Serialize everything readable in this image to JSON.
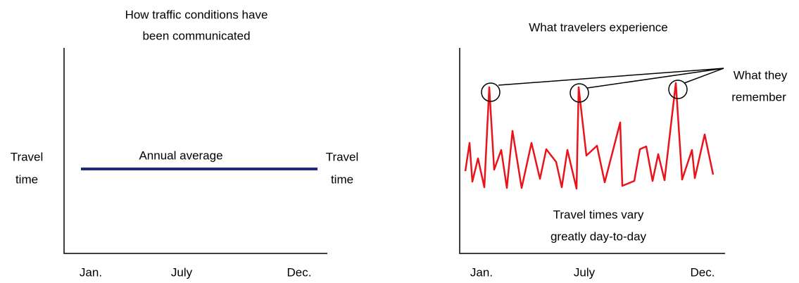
{
  "left_panel": {
    "title_lines": [
      "How traffic conditions have",
      "been communicated"
    ],
    "y_label_left": [
      "Travel",
      "time"
    ],
    "y_label_right": [
      "Travel",
      "time"
    ],
    "line_label": "Annual average",
    "x_labels": [
      "Jan.",
      "July",
      "Dec."
    ]
  },
  "right_panel": {
    "title": "What travelers experience",
    "callout": [
      "What they",
      "remember"
    ],
    "annotation": [
      "Travel times vary",
      "greatly day-to-day"
    ],
    "x_labels": [
      "Jan.",
      "July",
      "Dec."
    ]
  }
}
